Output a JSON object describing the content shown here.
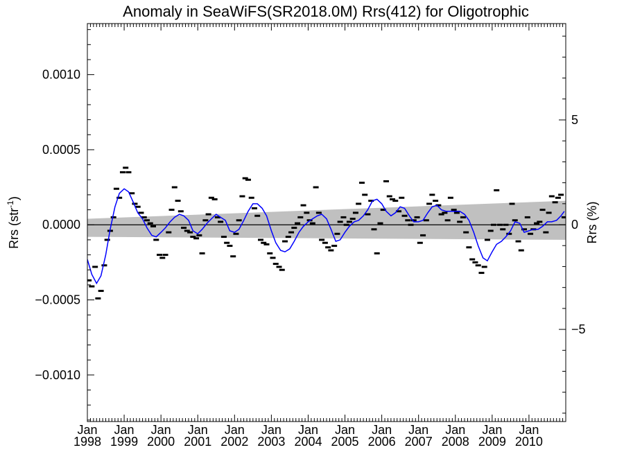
{
  "chart_data": {
    "type": "line",
    "title": "Anomaly in SeaWiFS(SR2018.0M) Rrs(412) for Oligotrophic",
    "ylabel": "Rrs (str",
    "ylabel_superscript": "-1",
    "ylabel_close": ")",
    "y2label": "Rrs (%)",
    "ylim": [
      -0.00131,
      0.00134
    ],
    "y2lim": [
      -9.4,
      9.6
    ],
    "xlim": [
      1998.0,
      2011.0
    ],
    "y_ticks": [
      {
        "value": 0.001,
        "label": "0.0010"
      },
      {
        "value": 0.0005,
        "label": "0.0005"
      },
      {
        "value": 0.0,
        "label": "0.0000"
      },
      {
        "value": -0.0005,
        "label": "−0.0005"
      },
      {
        "value": -0.001,
        "label": "−0.0010"
      }
    ],
    "y2_ticks": [
      {
        "value": 5,
        "label": "5"
      },
      {
        "value": 0,
        "label": "0"
      },
      {
        "value": -5,
        "label": "−5"
      }
    ],
    "x_ticks": [
      {
        "value": 1998.0,
        "line1": "Jan",
        "line2": "1998"
      },
      {
        "value": 1999.0,
        "line1": "Jan",
        "line2": "1999"
      },
      {
        "value": 2000.0,
        "line1": "Jan",
        "line2": "2000"
      },
      {
        "value": 2001.0,
        "line1": "Jan",
        "line2": "2001"
      },
      {
        "value": 2002.0,
        "line1": "Jan",
        "line2": "2002"
      },
      {
        "value": 2003.0,
        "line1": "Jan",
        "line2": "2003"
      },
      {
        "value": 2004.0,
        "line1": "Jan",
        "line2": "2004"
      },
      {
        "value": 2005.0,
        "line1": "Jan",
        "line2": "2005"
      },
      {
        "value": 2006.0,
        "line1": "Jan",
        "line2": "2006"
      },
      {
        "value": 2007.0,
        "line1": "Jan",
        "line2": "2007"
      },
      {
        "value": 2008.0,
        "line1": "Jan",
        "line2": "2008"
      },
      {
        "value": 2009.0,
        "line1": "Jan",
        "line2": "2009"
      },
      {
        "value": 2010.0,
        "line1": "Jan",
        "line2": "2010"
      }
    ],
    "colors": {
      "smoothed": "#0000ff",
      "monthly": "#000000",
      "band": "#c0c0c0",
      "zero_line": "#000000"
    },
    "band": {
      "x": [
        1998.0,
        2011.0
      ],
      "upper": [
        4e-05,
        0.00016
      ],
      "lower": [
        -8e-05,
        -0.0001
      ]
    },
    "series": [
      {
        "kind": "monthly_markers",
        "x": [
          1998.04,
          1998.12,
          1998.21,
          1998.29,
          1998.37,
          1998.46,
          1998.54,
          1998.62,
          1998.71,
          1998.79,
          1998.87,
          1998.96,
          1999.04,
          1999.12,
          1999.21,
          1999.29,
          1999.37,
          1999.46,
          1999.54,
          1999.62,
          1999.71,
          1999.79,
          1999.87,
          1999.96,
          2000.04,
          2000.12,
          2000.21,
          2000.29,
          2000.37,
          2000.46,
          2000.54,
          2000.62,
          2000.71,
          2000.79,
          2000.87,
          2000.96,
          2001.04,
          2001.12,
          2001.21,
          2001.29,
          2001.37,
          2001.46,
          2001.54,
          2001.62,
          2001.71,
          2001.79,
          2001.87,
          2001.96,
          2002.04,
          2002.12,
          2002.21,
          2002.29,
          2002.37,
          2002.46,
          2002.54,
          2002.62,
          2002.71,
          2002.79,
          2002.87,
          2002.96,
          2003.04,
          2003.12,
          2003.21,
          2003.29,
          2003.37,
          2003.46,
          2003.54,
          2003.62,
          2003.71,
          2003.79,
          2003.87,
          2003.96,
          2004.04,
          2004.12,
          2004.21,
          2004.29,
          2004.37,
          2004.46,
          2004.54,
          2004.62,
          2004.71,
          2004.79,
          2004.87,
          2004.96,
          2005.04,
          2005.12,
          2005.21,
          2005.29,
          2005.37,
          2005.46,
          2005.54,
          2005.62,
          2005.71,
          2005.79,
          2005.87,
          2005.96,
          2006.04,
          2006.12,
          2006.21,
          2006.29,
          2006.37,
          2006.46,
          2006.54,
          2006.62,
          2006.71,
          2006.79,
          2006.87,
          2006.96,
          2007.04,
          2007.12,
          2007.21,
          2007.29,
          2007.37,
          2007.46,
          2007.54,
          2007.62,
          2007.71,
          2007.79,
          2007.87,
          2007.96,
          2008.04,
          2008.12,
          2008.21,
          2008.29,
          2008.37,
          2008.46,
          2008.54,
          2008.62,
          2008.71,
          2008.79,
          2008.87,
          2008.96,
          2009.04,
          2009.12,
          2009.21,
          2009.29,
          2009.37,
          2009.46,
          2009.54,
          2009.62,
          2009.71,
          2009.79,
          2009.87,
          2009.96,
          2010.04,
          2010.12,
          2010.21,
          2010.29,
          2010.37,
          2010.46,
          2010.54,
          2010.62,
          2010.71,
          2010.79,
          2010.87,
          2010.96
        ],
        "y": [
          -0.00037,
          -0.00041,
          -0.00028,
          -0.00049,
          -0.00044,
          -0.00027,
          -0.0001,
          -4e-05,
          5e-05,
          0.00024,
          0.00018,
          0.00035,
          0.00038,
          0.00035,
          0.00021,
          0.00014,
          0.00012,
          8e-05,
          5e-05,
          3e-05,
          1e-05,
          -1e-05,
          -0.0001,
          -0.0002,
          -0.00022,
          -0.0002,
          -5e-05,
          0.0001,
          0.00025,
          0.00016,
          9e-05,
          -2e-05,
          -4e-05,
          -5e-05,
          -8e-05,
          -9e-05,
          -7e-05,
          -0.00019,
          3e-05,
          7e-05,
          0.00018,
          0.00017,
          5e-05,
          2e-05,
          -8e-05,
          -0.00012,
          -0.00014,
          -0.00021,
          -6e-05,
          3e-05,
          0.00019,
          0.00031,
          0.0003,
          0.00018,
          0.00011,
          6e-05,
          -0.0001,
          -0.00012,
          -0.00013,
          -0.00019,
          -0.00022,
          -0.00026,
          -0.00028,
          -0.0003,
          -0.00011,
          -8e-05,
          -5e-05,
          -2e-05,
          1e-05,
          5e-05,
          0.00013,
          8e-05,
          3e-05,
          1e-05,
          0.00025,
          8e-05,
          -0.0001,
          -0.00012,
          -0.00015,
          -0.00017,
          -0.00014,
          -6e-05,
          2e-05,
          5e-05,
          0.0,
          2e-05,
          4e-05,
          8e-05,
          0.00014,
          0.00028,
          0.0002,
          7e-05,
          0.00016,
          -3e-05,
          -0.00019,
          1e-05,
          0.0001,
          0.00029,
          0.00019,
          0.00017,
          0.00016,
          9e-05,
          0.00018,
          6e-05,
          3e-05,
          0.0,
          3e-05,
          5e-05,
          -0.00012,
          -7e-05,
          3e-05,
          0.00014,
          0.0002,
          0.00016,
          0.00013,
          7e-05,
          8e-05,
          3e-05,
          0.00018,
          0.0001,
          8e-05,
          2e-05,
          5e-05,
          -5e-05,
          -0.00015,
          -0.00023,
          -0.00025,
          -0.00027,
          -0.00032,
          -0.00028,
          -0.0001,
          -4e-05,
          0.0,
          0.00023,
          0.0,
          -3e-05,
          0.0,
          -6e-05,
          0.00014,
          3e-05,
          -0.00011,
          -0.00017,
          -3e-05,
          5e-05,
          -6e-05,
          -3e-05,
          1e-05,
          2e-05,
          0.0001,
          -5e-05,
          8e-05,
          0.00019,
          0.00015,
          0.00018,
          0.0002,
          5e-05
        ]
      },
      {
        "kind": "smoothed_line",
        "x": [
          1998.0,
          1998.12,
          1998.25,
          1998.37,
          1998.5,
          1998.62,
          1998.75,
          1998.87,
          1999.0,
          1999.12,
          1999.25,
          1999.37,
          1999.5,
          1999.62,
          1999.75,
          1999.87,
          2000.0,
          2000.12,
          2000.25,
          2000.37,
          2000.5,
          2000.62,
          2000.75,
          2000.87,
          2001.0,
          2001.12,
          2001.25,
          2001.37,
          2001.5,
          2001.62,
          2001.75,
          2001.87,
          2002.0,
          2002.12,
          2002.25,
          2002.37,
          2002.5,
          2002.62,
          2002.75,
          2002.87,
          2003.0,
          2003.12,
          2003.25,
          2003.37,
          2003.5,
          2003.62,
          2003.75,
          2003.87,
          2004.0,
          2004.12,
          2004.25,
          2004.37,
          2004.5,
          2004.62,
          2004.75,
          2004.87,
          2005.0,
          2005.12,
          2005.25,
          2005.37,
          2005.5,
          2005.62,
          2005.75,
          2005.87,
          2006.0,
          2006.12,
          2006.25,
          2006.37,
          2006.5,
          2006.62,
          2006.75,
          2006.87,
          2007.0,
          2007.12,
          2007.25,
          2007.37,
          2007.5,
          2007.62,
          2007.75,
          2007.87,
          2008.0,
          2008.12,
          2008.25,
          2008.37,
          2008.5,
          2008.62,
          2008.75,
          2008.87,
          2009.0,
          2009.12,
          2009.25,
          2009.37,
          2009.5,
          2009.62,
          2009.75,
          2009.87,
          2010.0,
          2010.12,
          2010.25,
          2010.37,
          2010.5,
          2010.62,
          2010.75,
          2010.87,
          2010.96
        ],
        "y": [
          -0.00023,
          -0.00033,
          -0.00039,
          -0.00034,
          -0.0002,
          -3e-05,
          0.00012,
          0.00021,
          0.00024,
          0.00022,
          0.00015,
          8e-05,
          4e-05,
          -2e-05,
          -7e-05,
          -8e-05,
          -5e-05,
          -2e-05,
          2e-05,
          5e-05,
          7e-05,
          6e-05,
          3e-05,
          -4e-05,
          -6e-05,
          -3e-05,
          1e-05,
          4e-05,
          7e-05,
          5e-05,
          3e-05,
          -4e-05,
          -5e-05,
          -3e-05,
          3e-05,
          9e-05,
          0.00014,
          0.00014,
          0.00011,
          6e-05,
          -4e-05,
          -0.00012,
          -0.00017,
          -0.00018,
          -0.00016,
          -0.00011,
          -5e-05,
          -1e-05,
          2e-05,
          4e-05,
          6e-05,
          7e-05,
          4e-05,
          -3e-05,
          -0.00011,
          -0.0001,
          -5e-05,
          -1e-05,
          2e-05,
          3e-05,
          6e-05,
          0.0001,
          0.00016,
          0.00017,
          0.00014,
          9e-05,
          6e-05,
          8e-05,
          0.00012,
          0.00011,
          6e-05,
          2e-05,
          2e-05,
          3e-05,
          8e-05,
          0.00012,
          0.00013,
          0.0001,
          9e-05,
          9e-05,
          9e-05,
          9e-05,
          7e-05,
          3e-05,
          -5e-05,
          -0.00014,
          -0.00022,
          -0.00024,
          -0.00018,
          -0.00013,
          -0.00011,
          -8e-05,
          -4e-05,
          2e-05,
          1e-05,
          -5e-05,
          -4e-05,
          -3e-05,
          -3e-05,
          -1e-05,
          2e-05,
          2e-05,
          3e-05,
          6e-05,
          9e-05
        ]
      }
    ]
  }
}
